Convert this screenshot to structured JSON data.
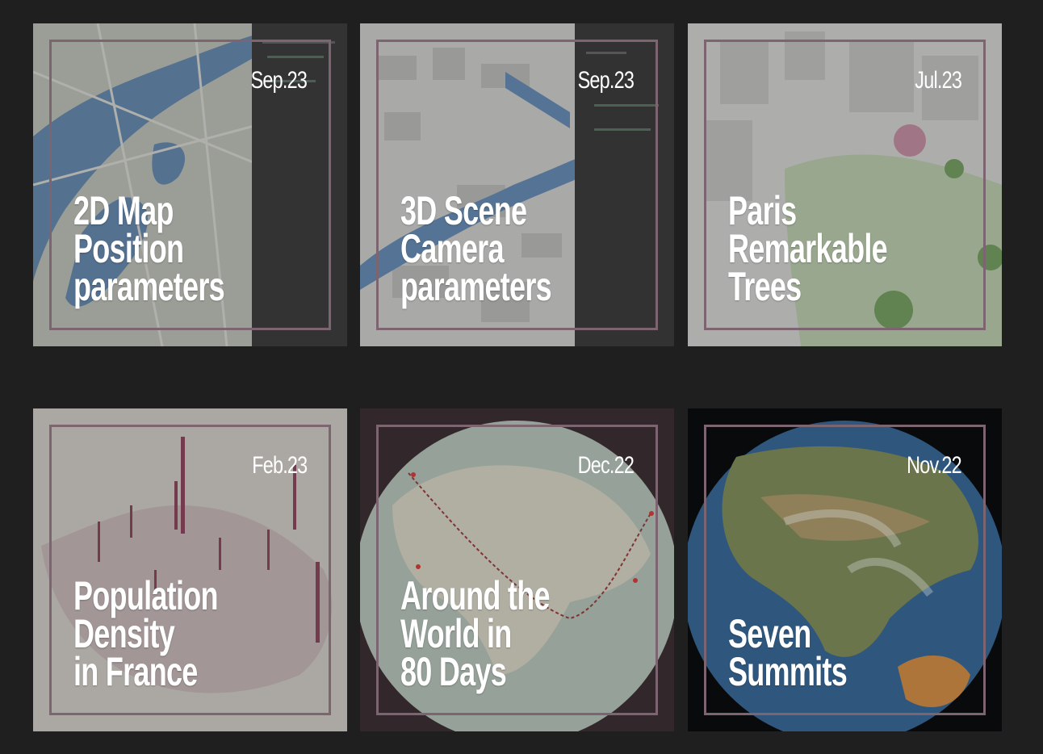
{
  "cards": [
    {
      "date": "Sep.23",
      "title_lines": [
        "2D Map",
        "Position",
        "parameters"
      ]
    },
    {
      "date": "Sep.23",
      "title_lines": [
        "3D Scene",
        "Camera",
        "parameters"
      ]
    },
    {
      "date": "Jul.23",
      "title_lines": [
        "Paris",
        "Remarkable",
        "Trees"
      ]
    },
    {
      "date": "Feb.23",
      "title_lines": [
        "Population",
        "Density",
        "in France"
      ]
    },
    {
      "date": "Dec.22",
      "title_lines": [
        "Around the",
        "World in",
        "80 Days"
      ]
    },
    {
      "date": "Nov.22",
      "title_lines": [
        "Seven",
        "Summits"
      ]
    }
  ],
  "colors": {
    "page_background": "#1f1f1f",
    "frame_border": "#7c6470",
    "text": "#ffffff"
  }
}
